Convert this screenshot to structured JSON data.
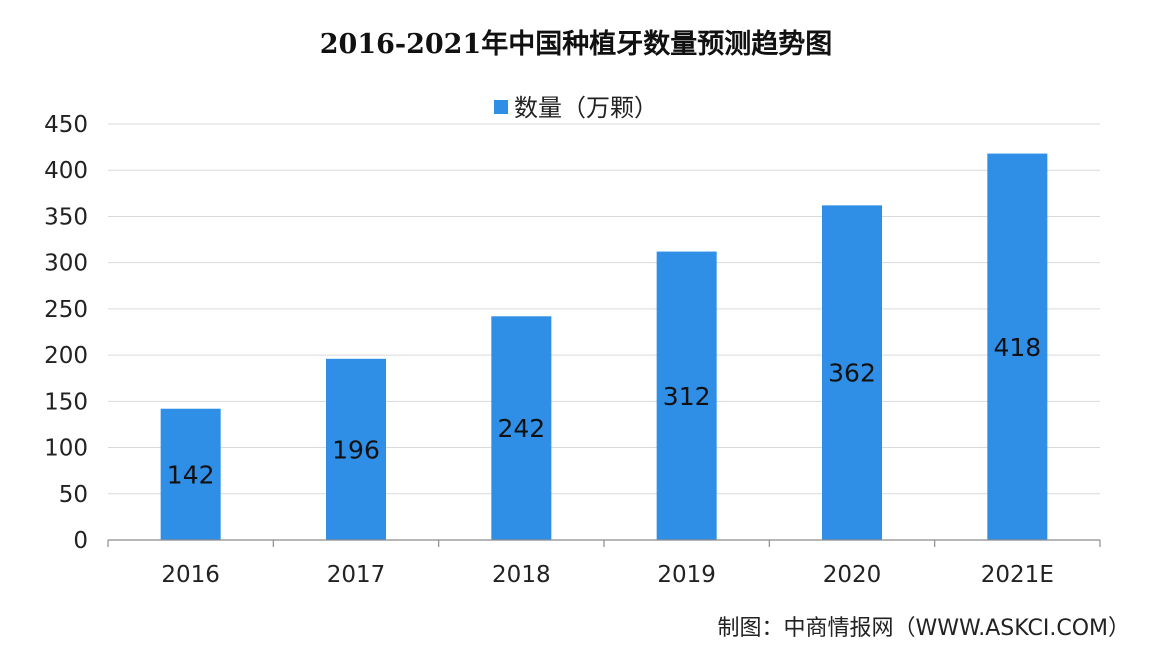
{
  "chart_data": {
    "type": "bar",
    "title": "2016-2021年中国种植牙数量预测趋势图",
    "categories": [
      "2016",
      "2017",
      "2018",
      "2019",
      "2020",
      "2021E"
    ],
    "series": [
      {
        "name": "数量（万颗）",
        "values": [
          142,
          196,
          242,
          312,
          362,
          418
        ],
        "color": "#2f8ee6"
      }
    ],
    "data_labels": [
      "142",
      "196",
      "242",
      "312",
      "362",
      "418"
    ],
    "ylim": [
      0,
      450
    ],
    "yticks": [
      0,
      50,
      100,
      150,
      200,
      250,
      300,
      350,
      400,
      450
    ],
    "grid": true,
    "legend_position": "top"
  },
  "source_text": "制图：中商情报网（WWW.ASKCI.COM）"
}
